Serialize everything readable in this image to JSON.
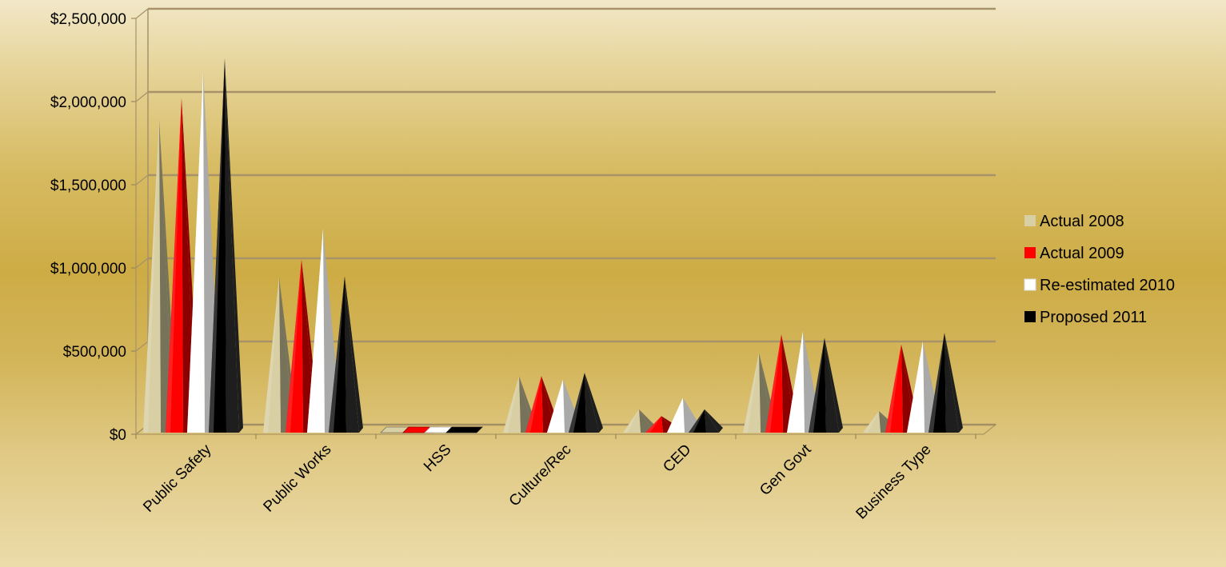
{
  "chart_data": {
    "type": "bar",
    "style": "3d-cone",
    "categories": [
      "Public Safety",
      "Public Works",
      "HSS",
      "Culture/Rec",
      "CED",
      "Gen Govt",
      "Business Type"
    ],
    "series": [
      {
        "name": "Actual 2008",
        "color": "#d8d0a4",
        "values": [
          1880000,
          935000,
          0,
          340000,
          140000,
          480000,
          130000
        ]
      },
      {
        "name": "Actual 2009",
        "color": "#ff0000",
        "values": [
          2010000,
          1040000,
          0,
          340000,
          100000,
          590000,
          530000
        ]
      },
      {
        "name": "Re-estimated 2010",
        "color": "#ffffff",
        "values": [
          2170000,
          1230000,
          0,
          320000,
          210000,
          610000,
          550000
        ]
      },
      {
        "name": "Proposed 2011",
        "color": "#000000",
        "values": [
          2250000,
          940000,
          0,
          360000,
          140000,
          570000,
          600000
        ]
      }
    ],
    "y_ticks": [
      "$0",
      "$500,000",
      "$1,000,000",
      "$1,500,000",
      "$2,000,000",
      "$2,500,000"
    ],
    "ylim": [
      0,
      2500000
    ],
    "grid": true,
    "legend_position": "right"
  }
}
